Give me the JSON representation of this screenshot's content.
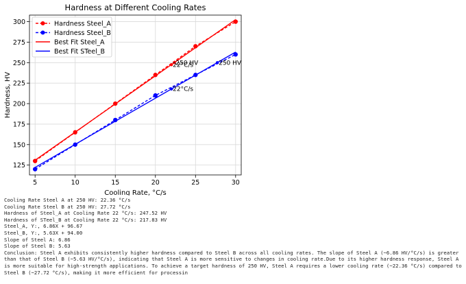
{
  "chart_data": {
    "type": "line",
    "title": "Hardness at Different Cooling Rates",
    "xlabel": "Cooling Rate, °C/s",
    "ylabel": "Hardness, HV",
    "xlim": [
      4.3,
      30.7
    ],
    "ylim": [
      113,
      308
    ],
    "xticks": [
      5,
      10,
      15,
      20,
      25,
      30
    ],
    "yticks": [
      125,
      150,
      175,
      200,
      225,
      250,
      275,
      300
    ],
    "grid": true,
    "legend": "top-left",
    "x": [
      5,
      10,
      15,
      20,
      25,
      30
    ],
    "series": [
      {
        "name": "Hardness Steel_A",
        "style": "dashed-marker",
        "color": "#ff0000",
        "values": [
          130,
          165,
          200,
          235,
          270,
          300
        ]
      },
      {
        "name": "Hardness Steel_B",
        "style": "dashed-marker",
        "color": "#0000ff",
        "values": [
          120,
          150,
          180,
          210,
          235,
          260
        ]
      },
      {
        "name": "Best Fit Steel_A",
        "style": "solid",
        "color": "#ff0000",
        "slope": 6.86,
        "intercept": 96.67,
        "x_range": [
          5,
          30
        ]
      },
      {
        "name": "Best Fit STeel_B",
        "style": "solid",
        "color": "#0000ff",
        "slope": 5.63,
        "intercept": 94.0,
        "x_range": [
          5,
          30
        ]
      }
    ],
    "annotations": [
      {
        "text": "250 HV",
        "x": 22.36,
        "y": 250,
        "marker_color": "#ff0000"
      },
      {
        "text": "22°C/s",
        "x": 22.0,
        "y": 247.52,
        "marker_color": "#ff0000"
      },
      {
        "text": "250 HV",
        "x": 27.72,
        "y": 250,
        "marker_color": "#0000ff"
      },
      {
        "text": "22°C/s",
        "x": 22.0,
        "y": 217.83,
        "marker_color": "#0000ff"
      }
    ]
  },
  "output_lines": [
    "Cooling Rate Steel A at 250 HV: 22.36 °C/s",
    "Cooling Rate Steel B at 250 HV: 27.72 °C/s",
    "Hardness of Steel_A at Cooling Rate 22 °C/s: 247.52 HV",
    "Hardness of STeel_B at Cooling Rate 22 °C/s: 217.83 HV",
    "Steel_A, Y:, 6.86X + 96.67",
    "Steel_B, Y:, 5.63X + 94.00",
    "Slope of Steel A: 6.86",
    "Slope of Steel B: 5.63",
    "Conclusion: Steel A exhibits consistently higher hardness compared to Steel B across all cooling rates. The slope of Steel A (~6.86 HV/°C/s) is greater than that of Steel B (~5.63 HV/°C/s), indicating that Steel A is more sensitive to changes in cooling rate.Due to its higher hardness response, Steel A is more suitable for high-strength applications. To achieve a target hardness of 250 HV, Steel A requires a lower cooling rate (~22.36 °C/s) compared to Steel B (~27.72 °C/s), making it more efficient for processin"
  ]
}
